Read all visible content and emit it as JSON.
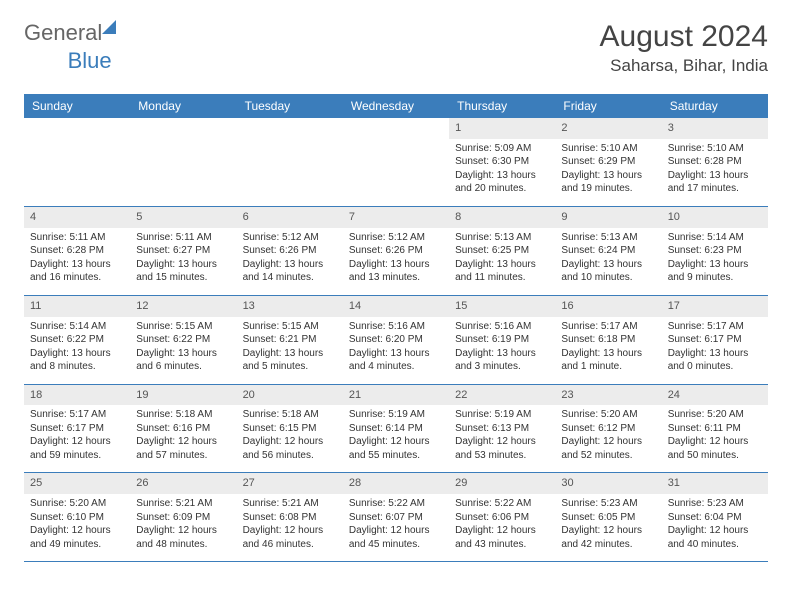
{
  "logo": {
    "general": "General",
    "blue": "Blue"
  },
  "title": "August 2024",
  "location": "Saharsa, Bihar, India",
  "colors": {
    "accent": "#3b7dbb",
    "shade": "#ececec",
    "text": "#333333"
  },
  "dayHeaders": [
    "Sunday",
    "Monday",
    "Tuesday",
    "Wednesday",
    "Thursday",
    "Friday",
    "Saturday"
  ],
  "weeks": [
    [
      {
        "date": "",
        "sunrise": "",
        "sunset": "",
        "daylight": ""
      },
      {
        "date": "",
        "sunrise": "",
        "sunset": "",
        "daylight": ""
      },
      {
        "date": "",
        "sunrise": "",
        "sunset": "",
        "daylight": ""
      },
      {
        "date": "",
        "sunrise": "",
        "sunset": "",
        "daylight": ""
      },
      {
        "date": "1",
        "sunrise": "Sunrise: 5:09 AM",
        "sunset": "Sunset: 6:30 PM",
        "daylight": "Daylight: 13 hours and 20 minutes."
      },
      {
        "date": "2",
        "sunrise": "Sunrise: 5:10 AM",
        "sunset": "Sunset: 6:29 PM",
        "daylight": "Daylight: 13 hours and 19 minutes."
      },
      {
        "date": "3",
        "sunrise": "Sunrise: 5:10 AM",
        "sunset": "Sunset: 6:28 PM",
        "daylight": "Daylight: 13 hours and 17 minutes."
      }
    ],
    [
      {
        "date": "4",
        "sunrise": "Sunrise: 5:11 AM",
        "sunset": "Sunset: 6:28 PM",
        "daylight": "Daylight: 13 hours and 16 minutes."
      },
      {
        "date": "5",
        "sunrise": "Sunrise: 5:11 AM",
        "sunset": "Sunset: 6:27 PM",
        "daylight": "Daylight: 13 hours and 15 minutes."
      },
      {
        "date": "6",
        "sunrise": "Sunrise: 5:12 AM",
        "sunset": "Sunset: 6:26 PM",
        "daylight": "Daylight: 13 hours and 14 minutes."
      },
      {
        "date": "7",
        "sunrise": "Sunrise: 5:12 AM",
        "sunset": "Sunset: 6:26 PM",
        "daylight": "Daylight: 13 hours and 13 minutes."
      },
      {
        "date": "8",
        "sunrise": "Sunrise: 5:13 AM",
        "sunset": "Sunset: 6:25 PM",
        "daylight": "Daylight: 13 hours and 11 minutes."
      },
      {
        "date": "9",
        "sunrise": "Sunrise: 5:13 AM",
        "sunset": "Sunset: 6:24 PM",
        "daylight": "Daylight: 13 hours and 10 minutes."
      },
      {
        "date": "10",
        "sunrise": "Sunrise: 5:14 AM",
        "sunset": "Sunset: 6:23 PM",
        "daylight": "Daylight: 13 hours and 9 minutes."
      }
    ],
    [
      {
        "date": "11",
        "sunrise": "Sunrise: 5:14 AM",
        "sunset": "Sunset: 6:22 PM",
        "daylight": "Daylight: 13 hours and 8 minutes."
      },
      {
        "date": "12",
        "sunrise": "Sunrise: 5:15 AM",
        "sunset": "Sunset: 6:22 PM",
        "daylight": "Daylight: 13 hours and 6 minutes."
      },
      {
        "date": "13",
        "sunrise": "Sunrise: 5:15 AM",
        "sunset": "Sunset: 6:21 PM",
        "daylight": "Daylight: 13 hours and 5 minutes."
      },
      {
        "date": "14",
        "sunrise": "Sunrise: 5:16 AM",
        "sunset": "Sunset: 6:20 PM",
        "daylight": "Daylight: 13 hours and 4 minutes."
      },
      {
        "date": "15",
        "sunrise": "Sunrise: 5:16 AM",
        "sunset": "Sunset: 6:19 PM",
        "daylight": "Daylight: 13 hours and 3 minutes."
      },
      {
        "date": "16",
        "sunrise": "Sunrise: 5:17 AM",
        "sunset": "Sunset: 6:18 PM",
        "daylight": "Daylight: 13 hours and 1 minute."
      },
      {
        "date": "17",
        "sunrise": "Sunrise: 5:17 AM",
        "sunset": "Sunset: 6:17 PM",
        "daylight": "Daylight: 13 hours and 0 minutes."
      }
    ],
    [
      {
        "date": "18",
        "sunrise": "Sunrise: 5:17 AM",
        "sunset": "Sunset: 6:17 PM",
        "daylight": "Daylight: 12 hours and 59 minutes."
      },
      {
        "date": "19",
        "sunrise": "Sunrise: 5:18 AM",
        "sunset": "Sunset: 6:16 PM",
        "daylight": "Daylight: 12 hours and 57 minutes."
      },
      {
        "date": "20",
        "sunrise": "Sunrise: 5:18 AM",
        "sunset": "Sunset: 6:15 PM",
        "daylight": "Daylight: 12 hours and 56 minutes."
      },
      {
        "date": "21",
        "sunrise": "Sunrise: 5:19 AM",
        "sunset": "Sunset: 6:14 PM",
        "daylight": "Daylight: 12 hours and 55 minutes."
      },
      {
        "date": "22",
        "sunrise": "Sunrise: 5:19 AM",
        "sunset": "Sunset: 6:13 PM",
        "daylight": "Daylight: 12 hours and 53 minutes."
      },
      {
        "date": "23",
        "sunrise": "Sunrise: 5:20 AM",
        "sunset": "Sunset: 6:12 PM",
        "daylight": "Daylight: 12 hours and 52 minutes."
      },
      {
        "date": "24",
        "sunrise": "Sunrise: 5:20 AM",
        "sunset": "Sunset: 6:11 PM",
        "daylight": "Daylight: 12 hours and 50 minutes."
      }
    ],
    [
      {
        "date": "25",
        "sunrise": "Sunrise: 5:20 AM",
        "sunset": "Sunset: 6:10 PM",
        "daylight": "Daylight: 12 hours and 49 minutes."
      },
      {
        "date": "26",
        "sunrise": "Sunrise: 5:21 AM",
        "sunset": "Sunset: 6:09 PM",
        "daylight": "Daylight: 12 hours and 48 minutes."
      },
      {
        "date": "27",
        "sunrise": "Sunrise: 5:21 AM",
        "sunset": "Sunset: 6:08 PM",
        "daylight": "Daylight: 12 hours and 46 minutes."
      },
      {
        "date": "28",
        "sunrise": "Sunrise: 5:22 AM",
        "sunset": "Sunset: 6:07 PM",
        "daylight": "Daylight: 12 hours and 45 minutes."
      },
      {
        "date": "29",
        "sunrise": "Sunrise: 5:22 AM",
        "sunset": "Sunset: 6:06 PM",
        "daylight": "Daylight: 12 hours and 43 minutes."
      },
      {
        "date": "30",
        "sunrise": "Sunrise: 5:23 AM",
        "sunset": "Sunset: 6:05 PM",
        "daylight": "Daylight: 12 hours and 42 minutes."
      },
      {
        "date": "31",
        "sunrise": "Sunrise: 5:23 AM",
        "sunset": "Sunset: 6:04 PM",
        "daylight": "Daylight: 12 hours and 40 minutes."
      }
    ]
  ]
}
